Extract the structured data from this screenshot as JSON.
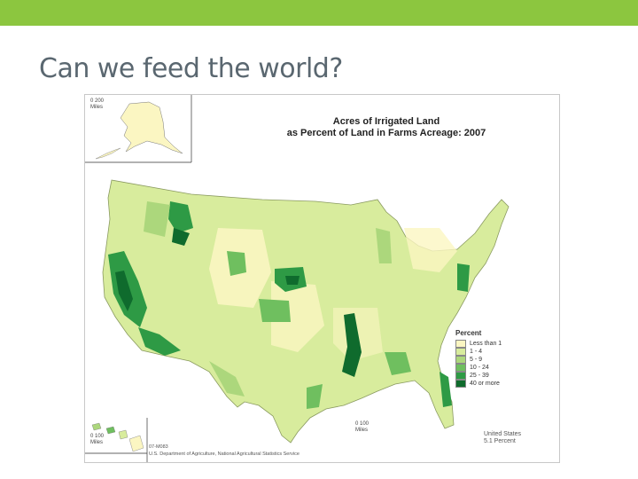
{
  "slide": {
    "title": "Can we feed the world?",
    "accent_color": "#8cc63f"
  },
  "map": {
    "title_line1": "Acres of Irrigated Land",
    "title_line2": "as Percent of Land in Farms Acreage:  2007",
    "legend": {
      "title": "Percent",
      "items": [
        {
          "label": "Less than 1",
          "color": "#fbf6c2"
        },
        {
          "label": "1 - 4",
          "color": "#d8ec9d"
        },
        {
          "label": "5 - 9",
          "color": "#acd77c"
        },
        {
          "label": "10 - 24",
          "color": "#6fbf5f"
        },
        {
          "label": "25 - 39",
          "color": "#2e9a45"
        },
        {
          "label": "40 or more",
          "color": "#0f6b2d"
        }
      ]
    },
    "scale_alaska": {
      "values": "0   200",
      "unit": "Miles"
    },
    "scale_hawaii": {
      "values": "0   100",
      "unit": "Miles"
    },
    "scale_conus": {
      "values": "0   100",
      "unit": "Miles"
    },
    "credit_id": "07-M083",
    "credit": "U.S. Department of Agriculture, National Agricultural Statistics Service",
    "us_label_line1": "United States",
    "us_label_line2": "5.1 Percent"
  }
}
